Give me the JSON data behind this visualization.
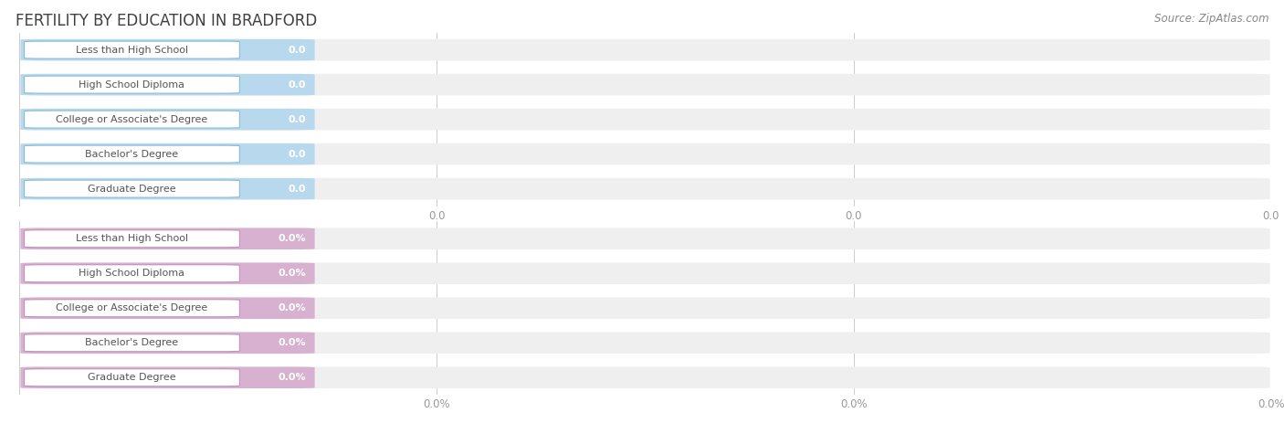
{
  "title": "FERTILITY BY EDUCATION IN BRADFORD",
  "source": "Source: ZipAtlas.com",
  "categories": [
    "Less than High School",
    "High School Diploma",
    "College or Associate's Degree",
    "Bachelor's Degree",
    "Graduate Degree"
  ],
  "values_top": [
    0.0,
    0.0,
    0.0,
    0.0,
    0.0
  ],
  "values_bottom": [
    0.0,
    0.0,
    0.0,
    0.0,
    0.0
  ],
  "bar_color_top": "#b8d8ed",
  "bar_color_bottom": "#d8b0d0",
  "bar_bg_color": "#efefef",
  "label_outline_top": "#88bbd8",
  "label_outline_bottom": "#c090be",
  "value_color_top": "#6699bb",
  "value_color_bottom": "#bb88bb",
  "tick_label_color": "#999999",
  "title_color": "#404040",
  "source_color": "#888888",
  "background_color": "#ffffff",
  "figsize": [
    14.06,
    4.75
  ],
  "dpi": 100
}
